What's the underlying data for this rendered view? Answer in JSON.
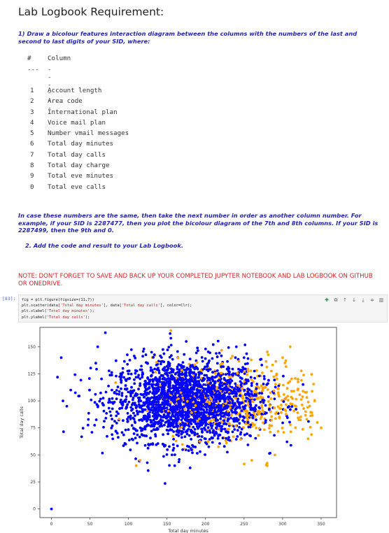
{
  "title": "Lab Logbook Requirement:",
  "q1": "1) Draw a bicolour features interaction diagram between the columns with the numbers of the last and second to last digits of your SID, where:",
  "table": {
    "hash": "#",
    "column_header": "Column",
    "sep_num": "---",
    "sep_col": "------",
    "rows": [
      {
        "n": "1",
        "c": "Account length"
      },
      {
        "n": "2",
        "c": "Area code"
      },
      {
        "n": "3",
        "c": "International plan"
      },
      {
        "n": "4",
        "c": "Voice mail plan"
      },
      {
        "n": "5",
        "c": "Number vmail messages"
      },
      {
        "n": "6",
        "c": "Total day minutes"
      },
      {
        "n": "7",
        "c": "Total day calls"
      },
      {
        "n": "8",
        "c": "Total day charge"
      },
      {
        "n": "9",
        "c": "Total eve minutes"
      },
      {
        "n": "0",
        "c": "Total eve calls"
      }
    ]
  },
  "para2": "In case these numbers are the same, then take the next number in order as another column number. For example, if your SID is 2287477, then you plot the bicolour diagram of the 7th and 8th columns. If your SID is 2287499, then the 9th and 0.",
  "item2": "2. Add the code and result to your Lab Logbook.",
  "note": "NOTE: DON'T FORGET TO SAVE AND BACK UP YOUR COMPLETED JUPYTER NOTEBOOK AND LAB LOGBOOK ON GITHUB OR ONEDRIVE.",
  "cell": {
    "prompt": "[83]:",
    "code": {
      "l1a": "fig = plt.figure(figsize=(11,7))",
      "l2a": "plt.scatter(data[",
      "l2s1": "'Total day minutes'",
      "l2b": "], data[",
      "l2s2": "'Total day calls'",
      "l2c": "], color=Clr);",
      "l3a": "plt.xlabel(",
      "l3s": "'Total day minutes'",
      "l3b": ");",
      "l4a": "plt.ylabel(",
      "l4s": "'Total day calls'",
      "l4b": ");"
    },
    "toolbar_icons": [
      "add-cell-icon",
      "copy-icon",
      "move-up-icon",
      "move-down-icon",
      "insert-below-icon",
      "merge-icon",
      "delete-icon"
    ]
  },
  "chart_data": {
    "type": "scatter",
    "xlabel": "Total day minutes",
    "ylabel": "Total day calls",
    "xlim": [
      -15,
      370
    ],
    "ylim": [
      -8,
      168
    ],
    "xticks": [
      0,
      50,
      100,
      150,
      200,
      250,
      300,
      350
    ],
    "yticks": [
      0,
      25,
      50,
      75,
      100,
      125,
      150
    ],
    "colors": {
      "blue": "#0000ff",
      "orange": "#ffa500"
    },
    "series": [
      {
        "color": "#0000ff",
        "x": [
          0,
          15,
          20,
          25,
          60,
          70,
          155,
          200,
          210,
          175,
          130,
          90,
          120,
          240,
          250,
          160,
          180
        ],
        "y": [
          0,
          100,
          95,
          110,
          150,
          163,
          158,
          148,
          152,
          155,
          145,
          120,
          148,
          150,
          140,
          40,
          38
        ]
      },
      {
        "color": "#ffa500",
        "x": [
          155,
          300,
          310,
          320,
          330,
          345,
          350,
          290,
          280,
          115,
          110,
          260
        ],
        "y": [
          165,
          140,
          150,
          120,
          90,
          80,
          75,
          50,
          40,
          45,
          40,
          45
        ]
      }
    ],
    "cloud": {
      "blue": {
        "x_center": 175,
        "x_spread": 48,
        "y_center": 100,
        "y_spread": 19,
        "n": 2300
      },
      "orange": {
        "x_center": 245,
        "x_spread": 55,
        "y_center": 100,
        "y_spread": 19,
        "n": 480
      }
    }
  }
}
